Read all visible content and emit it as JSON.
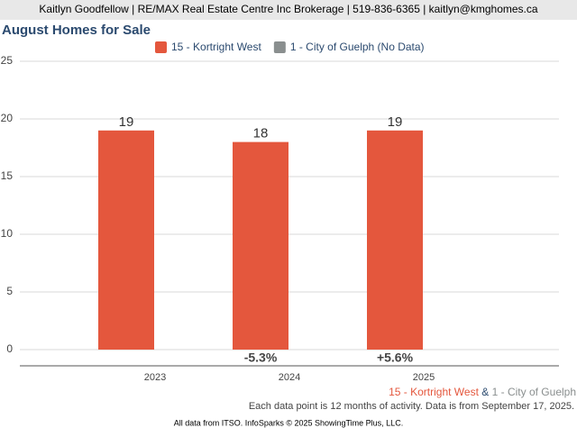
{
  "header": "Kaitlyn Goodfellow | RE/MAX Real Estate Centre Inc Brokerage | 519-836-6365 | kaitlyn@kmghomes.ca",
  "chart_data": {
    "type": "bar",
    "title": "August Homes for Sale",
    "categories": [
      "2023",
      "2024",
      "2025"
    ],
    "series": [
      {
        "name": "15 - Kortright West",
        "color": "#e4573d",
        "values": [
          19,
          18,
          19
        ]
      },
      {
        "name": "1 - City of Guelph (No Data)",
        "color": "#8a8f8f",
        "values": [
          null,
          null,
          null
        ]
      }
    ],
    "change_labels": [
      null,
      "-5.3%",
      "+5.6%"
    ],
    "ylim": [
      0,
      25
    ],
    "yticks": [
      0,
      5,
      10,
      15,
      20,
      25
    ],
    "grid": true,
    "legend": "top"
  },
  "footer": {
    "area_1": "15 - Kortright West",
    "joiner": "&",
    "area_2": "1 - City of Guelph",
    "note": "Each data point is 12 months of activity. Data is from September 17, 2025.",
    "credit": "All data from ITSO. InfoSparks © 2025 ShowingTime Plus, LLC."
  }
}
